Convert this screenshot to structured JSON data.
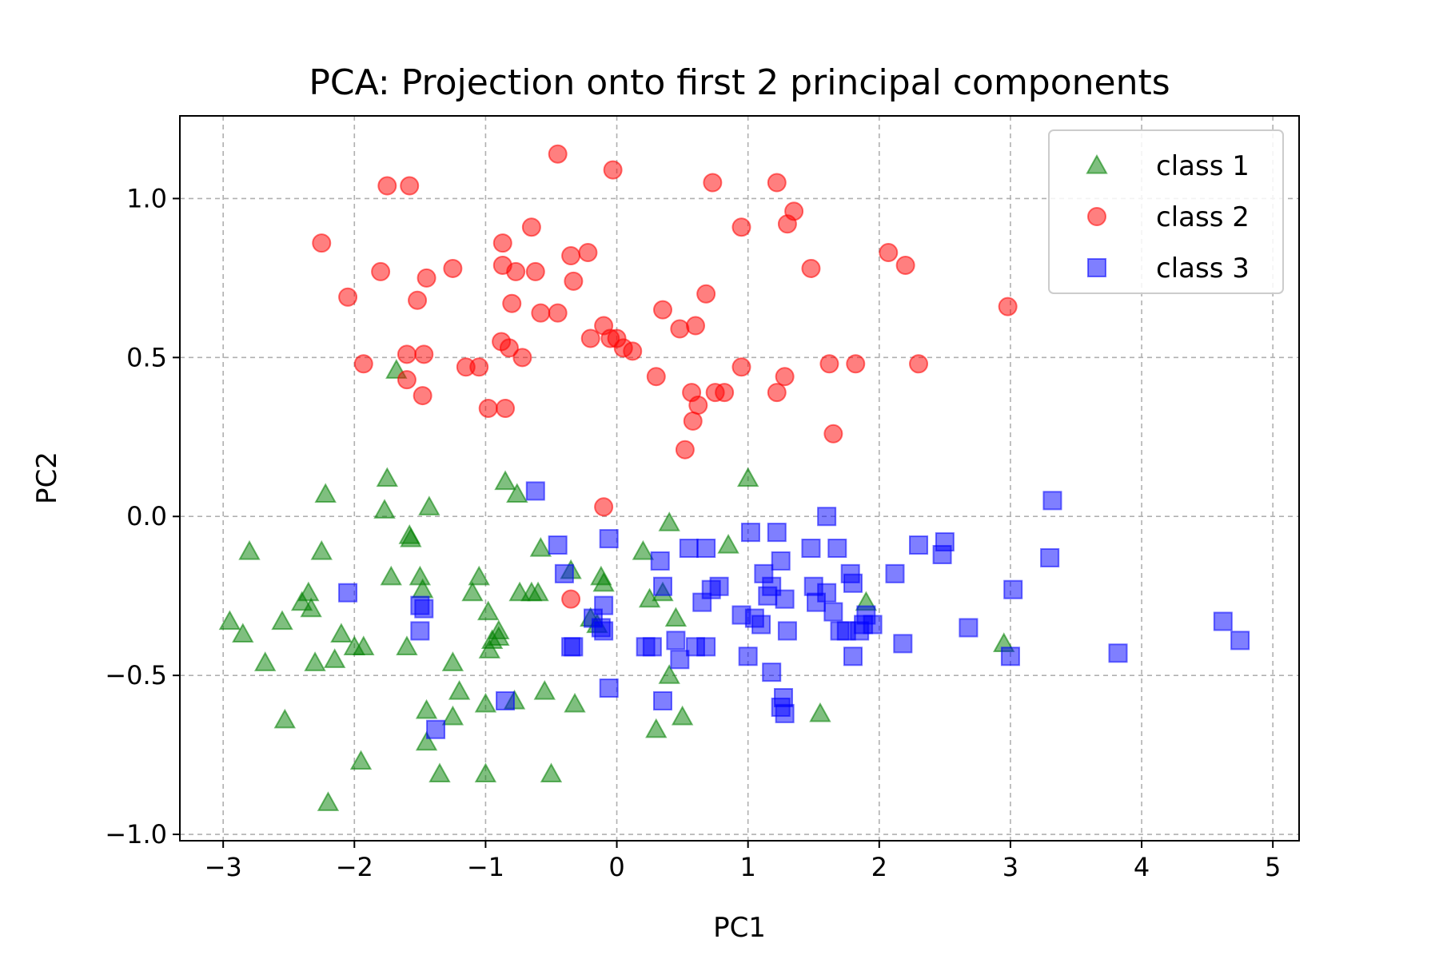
{
  "chart_data": {
    "type": "scatter",
    "title": "PCA: Projection onto first 2 principal components",
    "xlabel": "PC1",
    "ylabel": "PC2",
    "xlim": [
      -3.33,
      5.2
    ],
    "ylim": [
      -1.02,
      1.26
    ],
    "xticks": [
      -3,
      -2,
      -1,
      0,
      1,
      2,
      3,
      4,
      5
    ],
    "xtick_labels": [
      "−3",
      "−2",
      "−1",
      "0",
      "1",
      "2",
      "3",
      "4",
      "5"
    ],
    "yticks": [
      -1.0,
      -0.5,
      0.0,
      0.5,
      1.0
    ],
    "ytick_labels": [
      "−1.0",
      "−0.5",
      "0.0",
      "0.5",
      "1.0"
    ],
    "grid": true,
    "legend_position": "top-right",
    "series": [
      {
        "name": "class 1",
        "marker": "triangle",
        "color": "#008000",
        "points": [
          [
            -2.95,
            -0.33
          ],
          [
            -2.85,
            -0.37
          ],
          [
            -2.8,
            -0.11
          ],
          [
            -2.68,
            -0.46
          ],
          [
            -2.55,
            -0.33
          ],
          [
            -2.53,
            -0.64
          ],
          [
            -2.4,
            -0.27
          ],
          [
            -2.35,
            -0.24
          ],
          [
            -2.33,
            -0.29
          ],
          [
            -2.3,
            -0.46
          ],
          [
            -2.25,
            -0.11
          ],
          [
            -2.22,
            0.07
          ],
          [
            -2.2,
            -0.9
          ],
          [
            -2.15,
            -0.45
          ],
          [
            -2.1,
            -0.37
          ],
          [
            -2.0,
            -0.41
          ],
          [
            -1.95,
            -0.77
          ],
          [
            -1.93,
            -0.41
          ],
          [
            -1.77,
            0.02
          ],
          [
            -1.75,
            0.12
          ],
          [
            -1.72,
            -0.19
          ],
          [
            -1.68,
            0.46
          ],
          [
            -1.6,
            -0.41
          ],
          [
            -1.58,
            -0.06
          ],
          [
            -1.57,
            -0.07
          ],
          [
            -1.5,
            -0.19
          ],
          [
            -1.48,
            -0.23
          ],
          [
            -1.45,
            -0.61
          ],
          [
            -1.45,
            -0.71
          ],
          [
            -1.43,
            0.03
          ],
          [
            -1.35,
            -0.81
          ],
          [
            -1.25,
            -0.46
          ],
          [
            -1.25,
            -0.63
          ],
          [
            -1.2,
            -0.55
          ],
          [
            -1.1,
            -0.24
          ],
          [
            -1.05,
            -0.19
          ],
          [
            -1.0,
            -0.59
          ],
          [
            -1.0,
            -0.81
          ],
          [
            -0.98,
            -0.3
          ],
          [
            -0.97,
            -0.42
          ],
          [
            -0.95,
            -0.39
          ],
          [
            -0.9,
            -0.38
          ],
          [
            -0.9,
            -0.36
          ],
          [
            -0.85,
            0.11
          ],
          [
            -0.78,
            -0.58
          ],
          [
            -0.76,
            0.07
          ],
          [
            -0.74,
            -0.24
          ],
          [
            -0.65,
            -0.24
          ],
          [
            -0.6,
            -0.24
          ],
          [
            -0.58,
            -0.1
          ],
          [
            -0.55,
            -0.55
          ],
          [
            -0.5,
            -0.81
          ],
          [
            -0.35,
            -0.17
          ],
          [
            -0.32,
            -0.59
          ],
          [
            -0.2,
            -0.32
          ],
          [
            -0.15,
            -0.34
          ],
          [
            -0.12,
            -0.19
          ],
          [
            -0.1,
            -0.21
          ],
          [
            0.2,
            -0.11
          ],
          [
            0.25,
            -0.26
          ],
          [
            0.3,
            -0.67
          ],
          [
            0.35,
            -0.24
          ],
          [
            0.4,
            -0.02
          ],
          [
            0.4,
            -0.5
          ],
          [
            0.45,
            -0.32
          ],
          [
            0.5,
            -0.63
          ],
          [
            0.85,
            -0.09
          ],
          [
            1.0,
            0.12
          ],
          [
            1.55,
            -0.62
          ],
          [
            1.9,
            -0.27
          ],
          [
            2.95,
            -0.4
          ]
        ]
      },
      {
        "name": "class 2",
        "marker": "circle",
        "color": "#ff0000",
        "points": [
          [
            -2.25,
            0.86
          ],
          [
            -2.05,
            0.69
          ],
          [
            -1.93,
            0.48
          ],
          [
            -1.8,
            0.77
          ],
          [
            -1.75,
            1.04
          ],
          [
            -1.6,
            0.51
          ],
          [
            -1.58,
            1.04
          ],
          [
            -1.6,
            0.43
          ],
          [
            -1.52,
            0.68
          ],
          [
            -1.48,
            0.38
          ],
          [
            -1.47,
            0.51
          ],
          [
            -1.45,
            0.75
          ],
          [
            -1.25,
            0.78
          ],
          [
            -1.15,
            0.47
          ],
          [
            -1.05,
            0.47
          ],
          [
            -0.98,
            0.34
          ],
          [
            -0.88,
            0.55
          ],
          [
            -0.87,
            0.86
          ],
          [
            -0.87,
            0.79
          ],
          [
            -0.82,
            0.53
          ],
          [
            -0.8,
            0.67
          ],
          [
            -0.85,
            0.34
          ],
          [
            -0.77,
            0.77
          ],
          [
            -0.72,
            0.5
          ],
          [
            -0.65,
            0.91
          ],
          [
            -0.62,
            0.77
          ],
          [
            -0.58,
            0.64
          ],
          [
            -0.45,
            1.14
          ],
          [
            -0.45,
            0.64
          ],
          [
            -0.35,
            0.82
          ],
          [
            -0.33,
            0.74
          ],
          [
            -0.22,
            0.83
          ],
          [
            -0.2,
            0.56
          ],
          [
            -0.1,
            0.6
          ],
          [
            -0.05,
            0.56
          ],
          [
            -0.03,
            1.09
          ],
          [
            0.0,
            0.56
          ],
          [
            0.05,
            0.53
          ],
          [
            0.12,
            0.52
          ],
          [
            0.3,
            0.44
          ],
          [
            0.35,
            0.65
          ],
          [
            0.48,
            0.59
          ],
          [
            0.52,
            0.21
          ],
          [
            0.57,
            0.39
          ],
          [
            0.58,
            0.3
          ],
          [
            0.6,
            0.6
          ],
          [
            0.62,
            0.35
          ],
          [
            0.68,
            0.7
          ],
          [
            0.73,
            1.05
          ],
          [
            0.75,
            0.39
          ],
          [
            0.82,
            0.39
          ],
          [
            0.95,
            0.91
          ],
          [
            0.95,
            0.47
          ],
          [
            1.22,
            1.05
          ],
          [
            1.22,
            0.39
          ],
          [
            1.28,
            0.44
          ],
          [
            1.3,
            0.92
          ],
          [
            1.35,
            0.96
          ],
          [
            1.48,
            0.78
          ],
          [
            1.62,
            0.48
          ],
          [
            1.65,
            0.26
          ],
          [
            1.82,
            0.48
          ],
          [
            2.07,
            0.83
          ],
          [
            2.2,
            0.79
          ],
          [
            2.3,
            0.48
          ],
          [
            2.98,
            0.66
          ],
          [
            -0.1,
            0.03
          ],
          [
            -0.35,
            -0.26
          ]
        ]
      },
      {
        "name": "class 3",
        "marker": "square",
        "color": "#0000ff",
        "points": [
          [
            -2.05,
            -0.24
          ],
          [
            -1.5,
            -0.28
          ],
          [
            -1.5,
            -0.36
          ],
          [
            -1.47,
            -0.29
          ],
          [
            -1.38,
            -0.67
          ],
          [
            -0.85,
            -0.58
          ],
          [
            -0.62,
            0.08
          ],
          [
            -0.45,
            -0.09
          ],
          [
            -0.4,
            -0.18
          ],
          [
            -0.35,
            -0.41
          ],
          [
            -0.33,
            -0.41
          ],
          [
            -0.18,
            -0.32
          ],
          [
            -0.12,
            -0.35
          ],
          [
            -0.1,
            -0.36
          ],
          [
            -0.1,
            -0.28
          ],
          [
            -0.06,
            -0.07
          ],
          [
            -0.06,
            -0.54
          ],
          [
            0.22,
            -0.41
          ],
          [
            0.27,
            -0.41
          ],
          [
            0.33,
            -0.14
          ],
          [
            0.35,
            -0.22
          ],
          [
            0.35,
            -0.58
          ],
          [
            0.45,
            -0.39
          ],
          [
            0.48,
            -0.45
          ],
          [
            0.55,
            -0.1
          ],
          [
            0.6,
            -0.41
          ],
          [
            0.65,
            -0.27
          ],
          [
            0.68,
            -0.41
          ],
          [
            0.68,
            -0.1
          ],
          [
            0.72,
            -0.23
          ],
          [
            0.78,
            -0.22
          ],
          [
            0.95,
            -0.31
          ],
          [
            1.0,
            -0.44
          ],
          [
            1.02,
            -0.05
          ],
          [
            1.05,
            -0.32
          ],
          [
            1.1,
            -0.34
          ],
          [
            1.12,
            -0.18
          ],
          [
            1.15,
            -0.25
          ],
          [
            1.18,
            -0.22
          ],
          [
            1.18,
            -0.49
          ],
          [
            1.22,
            -0.05
          ],
          [
            1.25,
            -0.14
          ],
          [
            1.25,
            -0.6
          ],
          [
            1.27,
            -0.57
          ],
          [
            1.28,
            -0.62
          ],
          [
            1.28,
            -0.26
          ],
          [
            1.3,
            -0.36
          ],
          [
            1.48,
            -0.1
          ],
          [
            1.5,
            -0.22
          ],
          [
            1.52,
            -0.27
          ],
          [
            1.6,
            -0.24
          ],
          [
            1.6,
            0.0
          ],
          [
            1.65,
            -0.3
          ],
          [
            1.68,
            -0.1
          ],
          [
            1.7,
            -0.36
          ],
          [
            1.75,
            -0.36
          ],
          [
            1.78,
            -0.18
          ],
          [
            1.8,
            -0.21
          ],
          [
            1.8,
            -0.44
          ],
          [
            1.85,
            -0.36
          ],
          [
            1.88,
            -0.34
          ],
          [
            1.9,
            -0.31
          ],
          [
            1.95,
            -0.34
          ],
          [
            2.12,
            -0.18
          ],
          [
            2.18,
            -0.4
          ],
          [
            2.3,
            -0.09
          ],
          [
            2.48,
            -0.12
          ],
          [
            2.5,
            -0.08
          ],
          [
            2.68,
            -0.35
          ],
          [
            3.0,
            -0.44
          ],
          [
            3.02,
            -0.23
          ],
          [
            3.3,
            -0.13
          ],
          [
            3.32,
            0.05
          ],
          [
            3.82,
            -0.43
          ],
          [
            4.62,
            -0.33
          ],
          [
            4.75,
            -0.39
          ]
        ]
      }
    ]
  }
}
